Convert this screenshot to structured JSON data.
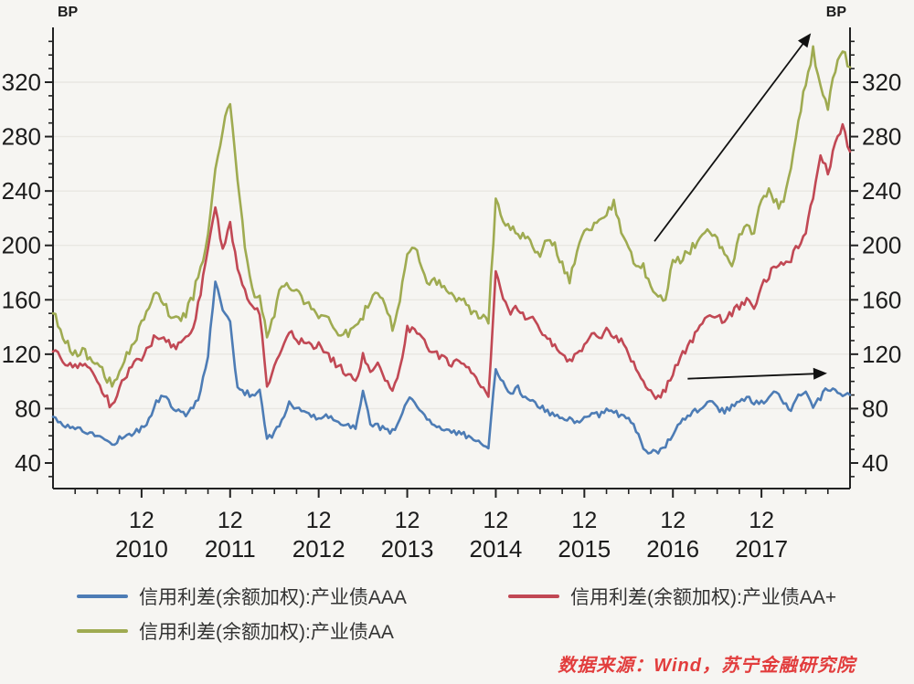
{
  "chart_data": {
    "type": "line",
    "title": "",
    "unit_label": "BP",
    "grid": "horizontal-major",
    "legend_position": "bottom",
    "x_axis": {
      "start_month": "2009-12",
      "end_month": "2018-12",
      "months_total": 108,
      "major_tick_label": "12",
      "year_labels": [
        "2010",
        "2011",
        "2012",
        "2013",
        "2014",
        "2015",
        "2016",
        "2017"
      ],
      "major_tick_months": [
        12,
        24,
        36,
        48,
        60,
        72,
        84,
        96
      ],
      "minor_tick_every_months": 3
    },
    "y_axis": {
      "unit": "BP",
      "ticks": [
        40,
        80,
        120,
        160,
        200,
        240,
        280,
        320
      ],
      "minor_step": 10,
      "minor_min": 30,
      "minor_max": 350,
      "axis_min": 21,
      "axis_max": 359,
      "labels_on_both_sides": true
    },
    "series": [
      {
        "name": "信用利差(余额加权):产业债AAA",
        "color": "#4d7cb5",
        "monthly_values": [
          74,
          70,
          67,
          66,
          64,
          62,
          60,
          57,
          54,
          58,
          60,
          63,
          65,
          72,
          85,
          90,
          82,
          78,
          76,
          80,
          92,
          120,
          174,
          152,
          143,
          95,
          92,
          90,
          94,
          58,
          62,
          70,
          85,
          80,
          78,
          75,
          71,
          75,
          72,
          70,
          68,
          67,
          93,
          70,
          67,
          65,
          63,
          72,
          87,
          84,
          78,
          72,
          68,
          64,
          62,
          63,
          60,
          58,
          56,
          52,
          110,
          98,
          92,
          95,
          88,
          85,
          82,
          77,
          75,
          72,
          74,
          70,
          72,
          78,
          75,
          80,
          78,
          75,
          72,
          65,
          50,
          47,
          49,
          52,
          62,
          70,
          75,
          78,
          82,
          85,
          80,
          78,
          82,
          85,
          88,
          84,
          84,
          88,
          92,
          85,
          78,
          90,
          93,
          80,
          88,
          95,
          92,
          90,
          90
        ]
      },
      {
        "name": "信用利差(余额加权):产业债AA+",
        "color": "#c14854",
        "monthly_values": [
          122,
          118,
          112,
          110,
          112,
          108,
          100,
          90,
          81,
          95,
          105,
          112,
          117,
          125,
          135,
          132,
          128,
          126,
          130,
          140,
          165,
          200,
          228,
          195,
          215,
          185,
          165,
          156,
          150,
          98,
          110,
          125,
          136,
          130,
          128,
          126,
          126,
          120,
          115,
          110,
          104,
          100,
          119,
          108,
          112,
          100,
          96,
          110,
          139,
          138,
          130,
          125,
          120,
          116,
          112,
          115,
          110,
          105,
          98,
          88,
          179,
          160,
          150,
          155,
          148,
          145,
          140,
          130,
          128,
          122,
          115,
          118,
          128,
          135,
          130,
          138,
          135,
          130,
          120,
          110,
          100,
          92,
          87,
          95,
          107,
          118,
          125,
          135,
          145,
          150,
          148,
          145,
          150,
          155,
          160,
          152,
          170,
          178,
          185,
          188,
          190,
          200,
          210,
          235,
          268,
          252,
          275,
          289,
          269
        ]
      },
      {
        "name": "信用利差(余额加权):产业债AA",
        "color": "#9fab51",
        "monthly_values": [
          150,
          138,
          128,
          120,
          122,
          118,
          112,
          105,
          97,
          105,
          118,
          130,
          142,
          152,
          165,
          158,
          148,
          145,
          150,
          163,
          185,
          205,
          253,
          287,
          305,
          245,
          200,
          168,
          160,
          135,
          150,
          172,
          170,
          165,
          160,
          155,
          150,
          148,
          142,
          134,
          136,
          138,
          148,
          160,
          168,
          155,
          139,
          160,
          190,
          198,
          183,
          170,
          174,
          168,
          164,
          160,
          156,
          150,
          148,
          145,
          233,
          220,
          212,
          208,
          205,
          200,
          195,
          207,
          200,
          185,
          174,
          195,
          210,
          212,
          218,
          225,
          230,
          210,
          196,
          186,
          184,
          170,
          163,
          161,
          188,
          190,
          195,
          200,
          205,
          210,
          205,
          195,
          185,
          205,
          215,
          210,
          232,
          240,
          231,
          230,
          255,
          290,
          320,
          343,
          315,
          302,
          330,
          344,
          331
        ]
      }
    ],
    "annotations": [
      {
        "type": "arrow",
        "x1_month": 81.5,
        "y1_bp": 203,
        "x2_month": 102.7,
        "y2_bp": 356
      },
      {
        "type": "arrow",
        "x1_month": 86.0,
        "y1_bp": 102,
        "x2_month": 104.9,
        "y2_bp": 106
      }
    ]
  },
  "legend": {
    "rows": [
      [
        "信用利差(余额加权):产业债AAA",
        "信用利差(余额加权):产业债AA+"
      ],
      [
        "信用利差(余额加权):产业债AA"
      ]
    ]
  },
  "source_note": "数据来源：Wind，苏宁金融研究院"
}
